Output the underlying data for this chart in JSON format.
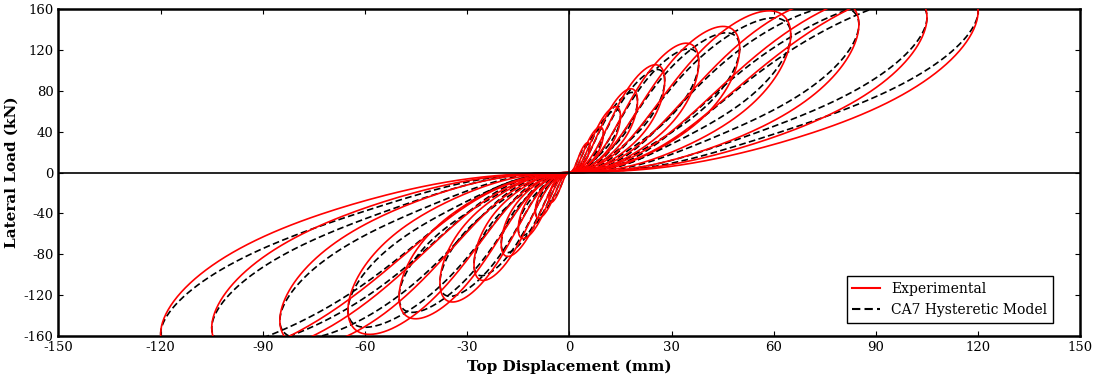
{
  "title": "",
  "xlabel": "Top Displacement (mm)",
  "ylabel": "Lateral Load (kN)",
  "xlim": [
    -150,
    150
  ],
  "ylim": [
    -160,
    160
  ],
  "xticks": [
    -150,
    -120,
    -90,
    -60,
    -30,
    0,
    30,
    60,
    90,
    120,
    150
  ],
  "yticks": [
    -160,
    -120,
    -80,
    -40,
    0,
    40,
    80,
    120,
    160
  ],
  "exp_color": "#ff0000",
  "model_color": "#000000",
  "exp_linewidth": 1.2,
  "model_linewidth": 1.2,
  "background_color": "#ffffff",
  "legend_labels": [
    "Experimental",
    "CA7 Hysteretic Model"
  ],
  "cycle_disp_mm": [
    6,
    10,
    15,
    20,
    28,
    38,
    50,
    65,
    85,
    105,
    120
  ],
  "cycle_loads_kN": [
    25,
    38,
    55,
    70,
    90,
    108,
    122,
    135,
    145,
    152,
    158
  ]
}
